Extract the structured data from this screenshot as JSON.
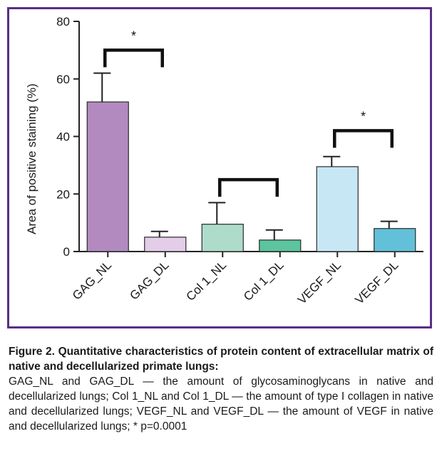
{
  "chart_data": {
    "type": "bar",
    "title": "",
    "xlabel": "",
    "ylabel": "Area of positive staining (%)",
    "ylim": [
      0,
      80
    ],
    "yticks": [
      0,
      20,
      40,
      60,
      80
    ],
    "grid": false,
    "legend": "none",
    "categories": [
      "GAG_NL",
      "GAG_DL",
      "Col 1_NL",
      "Col 1_DL",
      "VEGF_NL",
      "VEGF_DL"
    ],
    "values": [
      52,
      5,
      9.5,
      4,
      29.5,
      8
    ],
    "errors": [
      10,
      2,
      7.5,
      3.5,
      3.5,
      2.5
    ],
    "colors": [
      "#b28ac0",
      "#e3cde8",
      "#aedccb",
      "#5cc49e",
      "#c8e7f4",
      "#62c0d9"
    ],
    "significance": [
      {
        "from": "GAG_NL",
        "to": "GAG_DL",
        "label": "*",
        "y": 70
      },
      {
        "from": "Col 1_NL",
        "to": "Col 1_DL",
        "label": "",
        "y": 25
      },
      {
        "from": "VEGF_NL",
        "to": "VEGF_DL",
        "label": "*",
        "y": 42
      }
    ]
  },
  "caption": {
    "title": "Figure 2. Quantitative characteristics of protein content of extracellular matrix of native and decellularized primate lungs:",
    "body": "GAG_NL and GAG_DL — the amount of glycosaminoglycans in native and decellularized lungs; Col 1_NL and Col 1_DL — the amount of type I collagen in native and decellularized lungs; VEGF_NL and VEGF_DL — the amount of VEGF in native and decellularized lungs; * p=0.0001"
  }
}
